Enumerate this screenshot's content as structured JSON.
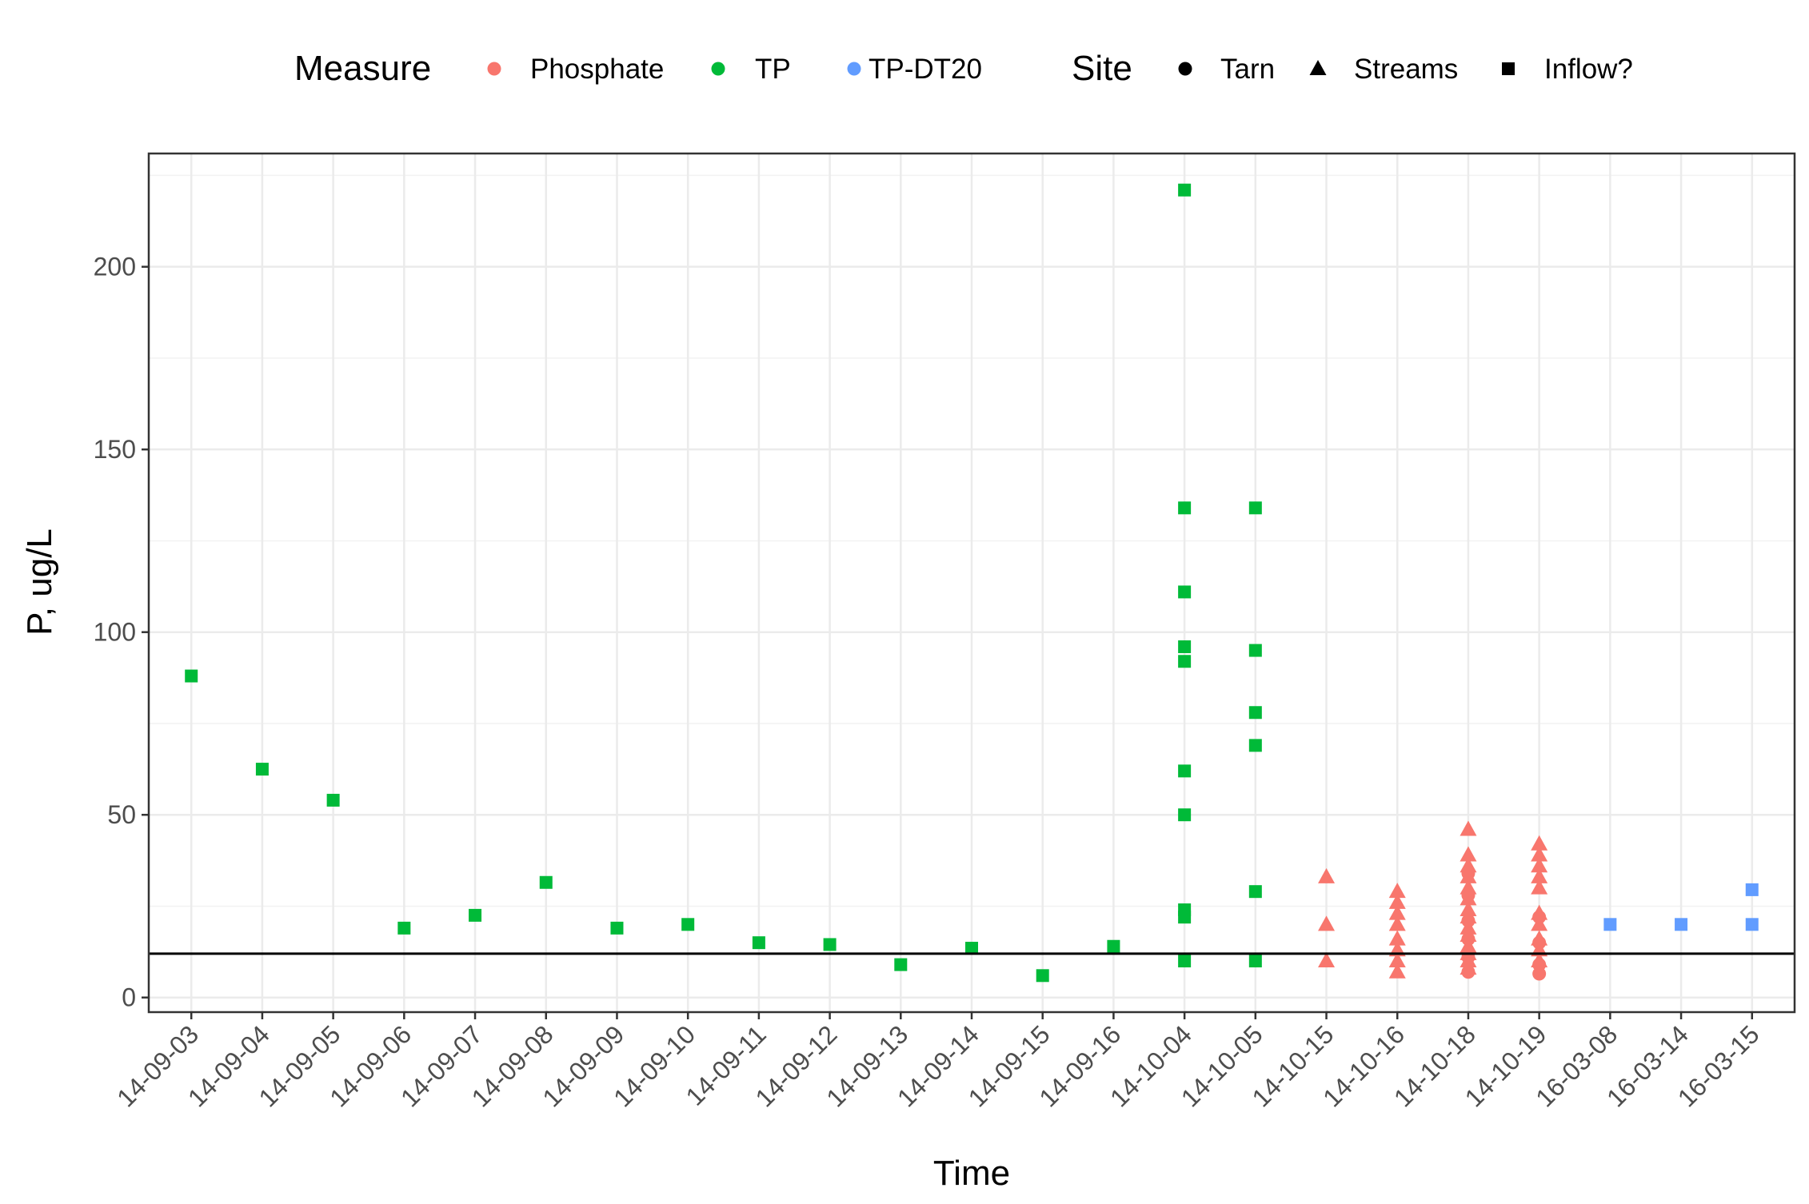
{
  "chart_data": {
    "type": "scatter",
    "xlabel": "Time",
    "ylabel": "P, ug/L",
    "ylim": [
      -4,
      231
    ],
    "yticks": [
      0,
      50,
      100,
      150,
      200
    ],
    "grid": true,
    "legend_position": "top",
    "x_categories": [
      "14-09-03",
      "14-09-04",
      "14-09-05",
      "14-09-06",
      "14-09-07",
      "14-09-08",
      "14-09-09",
      "14-09-10",
      "14-09-11",
      "14-09-12",
      "14-09-13",
      "14-09-14",
      "14-09-15",
      "14-09-16",
      "14-10-04",
      "14-10-05",
      "14-10-15",
      "14-10-16",
      "14-10-18",
      "14-10-19",
      "16-03-08",
      "16-03-14",
      "16-03-15"
    ],
    "reference_line_y": 12,
    "legend_measure": {
      "title": "Measure",
      "entries": [
        {
          "label": "Phosphate",
          "color": "#F8766D"
        },
        {
          "label": "TP",
          "color": "#00BA38"
        },
        {
          "label": "TP-DT20",
          "color": "#619CFF"
        }
      ]
    },
    "legend_site": {
      "title": "Site",
      "entries": [
        {
          "label": "Tarn",
          "shape": "circle"
        },
        {
          "label": "Streams",
          "shape": "triangle"
        },
        {
          "label": "Inflow?",
          "shape": "square"
        }
      ]
    },
    "points": [
      {
        "x": "14-09-03",
        "y": 88,
        "measure": "TP",
        "site": "Inflow?"
      },
      {
        "x": "14-09-04",
        "y": 62.5,
        "measure": "TP",
        "site": "Inflow?"
      },
      {
        "x": "14-09-05",
        "y": 54,
        "measure": "TP",
        "site": "Inflow?"
      },
      {
        "x": "14-09-06",
        "y": 19,
        "measure": "TP",
        "site": "Inflow?"
      },
      {
        "x": "14-09-07",
        "y": 22.5,
        "measure": "TP",
        "site": "Inflow?"
      },
      {
        "x": "14-09-08",
        "y": 31.5,
        "measure": "TP",
        "site": "Inflow?"
      },
      {
        "x": "14-09-09",
        "y": 19,
        "measure": "TP",
        "site": "Inflow?"
      },
      {
        "x": "14-09-10",
        "y": 20,
        "measure": "TP",
        "site": "Inflow?"
      },
      {
        "x": "14-09-11",
        "y": 15,
        "measure": "TP",
        "site": "Inflow?"
      },
      {
        "x": "14-09-12",
        "y": 14.5,
        "measure": "TP",
        "site": "Inflow?"
      },
      {
        "x": "14-09-13",
        "y": 9,
        "measure": "TP",
        "site": "Inflow?"
      },
      {
        "x": "14-09-14",
        "y": 13.5,
        "measure": "TP",
        "site": "Inflow?"
      },
      {
        "x": "14-09-15",
        "y": 6,
        "measure": "TP",
        "site": "Inflow?"
      },
      {
        "x": "14-09-16",
        "y": 14,
        "measure": "TP",
        "site": "Inflow?"
      },
      {
        "x": "14-10-04",
        "y": 221,
        "measure": "TP",
        "site": "Inflow?"
      },
      {
        "x": "14-10-04",
        "y": 134,
        "measure": "TP",
        "site": "Inflow?"
      },
      {
        "x": "14-10-04",
        "y": 111,
        "measure": "TP",
        "site": "Inflow?"
      },
      {
        "x": "14-10-04",
        "y": 96,
        "measure": "TP",
        "site": "Inflow?"
      },
      {
        "x": "14-10-04",
        "y": 92,
        "measure": "TP",
        "site": "Inflow?"
      },
      {
        "x": "14-10-04",
        "y": 62,
        "measure": "TP",
        "site": "Inflow?"
      },
      {
        "x": "14-10-04",
        "y": 50,
        "measure": "TP",
        "site": "Inflow?"
      },
      {
        "x": "14-10-04",
        "y": 24,
        "measure": "TP",
        "site": "Inflow?"
      },
      {
        "x": "14-10-04",
        "y": 22,
        "measure": "TP",
        "site": "Inflow?"
      },
      {
        "x": "14-10-04",
        "y": 10,
        "measure": "TP",
        "site": "Inflow?"
      },
      {
        "x": "14-10-05",
        "y": 134,
        "measure": "TP",
        "site": "Inflow?"
      },
      {
        "x": "14-10-05",
        "y": 95,
        "measure": "TP",
        "site": "Inflow?"
      },
      {
        "x": "14-10-05",
        "y": 78,
        "measure": "TP",
        "site": "Inflow?"
      },
      {
        "x": "14-10-05",
        "y": 69,
        "measure": "TP",
        "site": "Inflow?"
      },
      {
        "x": "14-10-05",
        "y": 29,
        "measure": "TP",
        "site": "Inflow?"
      },
      {
        "x": "14-10-05",
        "y": 10,
        "measure": "TP",
        "site": "Inflow?"
      },
      {
        "x": "14-10-15",
        "y": 33,
        "measure": "Phosphate",
        "site": "Streams"
      },
      {
        "x": "14-10-15",
        "y": 20,
        "measure": "Phosphate",
        "site": "Streams"
      },
      {
        "x": "14-10-15",
        "y": 10,
        "measure": "Phosphate",
        "site": "Streams"
      },
      {
        "x": "14-10-16",
        "y": 29,
        "measure": "Phosphate",
        "site": "Streams"
      },
      {
        "x": "14-10-16",
        "y": 26,
        "measure": "Phosphate",
        "site": "Streams"
      },
      {
        "x": "14-10-16",
        "y": 23,
        "measure": "Phosphate",
        "site": "Streams"
      },
      {
        "x": "14-10-16",
        "y": 20,
        "measure": "Phosphate",
        "site": "Streams"
      },
      {
        "x": "14-10-16",
        "y": 16,
        "measure": "Phosphate",
        "site": "Streams"
      },
      {
        "x": "14-10-16",
        "y": 13,
        "measure": "Phosphate",
        "site": "Streams"
      },
      {
        "x": "14-10-16",
        "y": 10,
        "measure": "Phosphate",
        "site": "Streams"
      },
      {
        "x": "14-10-16",
        "y": 7,
        "measure": "Phosphate",
        "site": "Streams"
      },
      {
        "x": "14-10-18",
        "y": 46,
        "measure": "Phosphate",
        "site": "Streams"
      },
      {
        "x": "14-10-18",
        "y": 39,
        "measure": "Phosphate",
        "site": "Streams"
      },
      {
        "x": "14-10-18",
        "y": 36,
        "measure": "Phosphate",
        "site": "Streams"
      },
      {
        "x": "14-10-18",
        "y": 33,
        "measure": "Phosphate",
        "site": "Streams"
      },
      {
        "x": "14-10-18",
        "y": 30,
        "measure": "Phosphate",
        "site": "Streams"
      },
      {
        "x": "14-10-18",
        "y": 27,
        "measure": "Phosphate",
        "site": "Streams"
      },
      {
        "x": "14-10-18",
        "y": 24,
        "measure": "Phosphate",
        "site": "Streams"
      },
      {
        "x": "14-10-18",
        "y": 22,
        "measure": "Phosphate",
        "site": "Streams"
      },
      {
        "x": "14-10-18",
        "y": 19,
        "measure": "Phosphate",
        "site": "Streams"
      },
      {
        "x": "14-10-18",
        "y": 17,
        "measure": "Phosphate",
        "site": "Streams"
      },
      {
        "x": "14-10-18",
        "y": 14,
        "measure": "Phosphate",
        "site": "Streams"
      },
      {
        "x": "14-10-18",
        "y": 12,
        "measure": "Phosphate",
        "site": "Streams"
      },
      {
        "x": "14-10-18",
        "y": 10,
        "measure": "Phosphate",
        "site": "Streams"
      },
      {
        "x": "14-10-18",
        "y": 8,
        "measure": "Phosphate",
        "site": "Streams"
      },
      {
        "x": "14-10-18",
        "y": 34,
        "measure": "Phosphate",
        "site": "Tarn"
      },
      {
        "x": "14-10-18",
        "y": 28,
        "measure": "Phosphate",
        "site": "Tarn"
      },
      {
        "x": "14-10-18",
        "y": 21,
        "measure": "Phosphate",
        "site": "Tarn"
      },
      {
        "x": "14-10-18",
        "y": 16,
        "measure": "Phosphate",
        "site": "Tarn"
      },
      {
        "x": "14-10-18",
        "y": 11,
        "measure": "Phosphate",
        "site": "Tarn"
      },
      {
        "x": "14-10-18",
        "y": 7,
        "measure": "Phosphate",
        "site": "Tarn"
      },
      {
        "x": "14-10-19",
        "y": 42,
        "measure": "Phosphate",
        "site": "Streams"
      },
      {
        "x": "14-10-19",
        "y": 39,
        "measure": "Phosphate",
        "site": "Streams"
      },
      {
        "x": "14-10-19",
        "y": 36,
        "measure": "Phosphate",
        "site": "Streams"
      },
      {
        "x": "14-10-19",
        "y": 33,
        "measure": "Phosphate",
        "site": "Streams"
      },
      {
        "x": "14-10-19",
        "y": 30,
        "measure": "Phosphate",
        "site": "Streams"
      },
      {
        "x": "14-10-19",
        "y": 23,
        "measure": "Phosphate",
        "site": "Streams"
      },
      {
        "x": "14-10-19",
        "y": 20,
        "measure": "Phosphate",
        "site": "Streams"
      },
      {
        "x": "14-10-19",
        "y": 16,
        "measure": "Phosphate",
        "site": "Streams"
      },
      {
        "x": "14-10-19",
        "y": 13,
        "measure": "Phosphate",
        "site": "Streams"
      },
      {
        "x": "14-10-19",
        "y": 10,
        "measure": "Phosphate",
        "site": "Streams"
      },
      {
        "x": "14-10-19",
        "y": 22,
        "measure": "Phosphate",
        "site": "Tarn"
      },
      {
        "x": "14-10-19",
        "y": 15,
        "measure": "Phosphate",
        "site": "Tarn"
      },
      {
        "x": "14-10-19",
        "y": 9,
        "measure": "Phosphate",
        "site": "Tarn"
      },
      {
        "x": "14-10-19",
        "y": 6.5,
        "measure": "Phosphate",
        "site": "Tarn"
      },
      {
        "x": "16-03-08",
        "y": 20,
        "measure": "TP-DT20",
        "site": "Inflow?"
      },
      {
        "x": "16-03-14",
        "y": 20,
        "measure": "TP-DT20",
        "site": "Inflow?"
      },
      {
        "x": "16-03-15",
        "y": 29.5,
        "measure": "TP-DT20",
        "site": "Inflow?"
      },
      {
        "x": "16-03-15",
        "y": 20,
        "measure": "TP-DT20",
        "site": "Inflow?"
      }
    ]
  }
}
